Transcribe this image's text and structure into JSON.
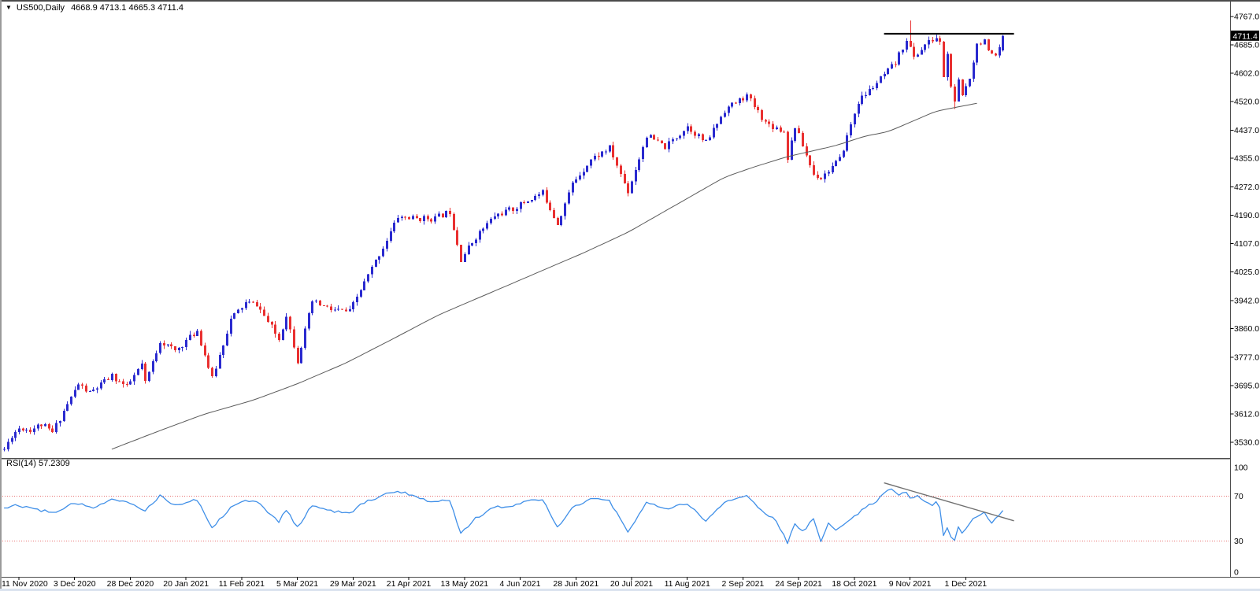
{
  "window": {
    "symbol_period": "US500,Daily",
    "ohlc_text": "4668.9 4713.1 4665.3 4711.4",
    "rsi_label": "RSI(14) 57.2309",
    "current_price": "4711.4"
  },
  "colors": {
    "background": "#ffffff",
    "bull": "#2a2acf",
    "bear": "#e93030",
    "ma_line": "#5a5a5a",
    "resistance": "#000000",
    "rsi_line": "#3f8fe8",
    "rsi_levels": "#e87070",
    "rsi_trendline": "#707070",
    "axis_text": "#000000",
    "frame": "#4d4d4d",
    "price_marker_bg": "#000000",
    "price_marker_text": "#ffffff"
  },
  "chart_data": {
    "type": "candlestick",
    "symbol": "US500",
    "timeframe": "Daily",
    "title_ohlc": {
      "open": 4668.9,
      "high": 4713.1,
      "low": 4665.3,
      "close": 4711.4
    },
    "price_axis_ticks": [
      "4767.0",
      "4685.0",
      "4602.0",
      "4520.0",
      "4437.0",
      "4355.0",
      "4272.0",
      "4190.0",
      "4107.0",
      "4025.0",
      "3942.0",
      "3860.0",
      "3777.0",
      "3695.0",
      "3612.0",
      "3530.0"
    ],
    "date_ticks": [
      "11 Nov 2020",
      "3 Dec 2020",
      "28 Dec 2020",
      "20 Jan 2021",
      "11 Feb 2021",
      "5 Mar 2021",
      "29 Mar 2021",
      "21 Apr 2021",
      "13 May 2021",
      "4 Jun 2021",
      "28 Jun 2021",
      "20 Jul 2021",
      "11 Aug 2021",
      "2 Sep 2021",
      "24 Sep 2021",
      "18 Oct 2021",
      "9 Nov 2021",
      "1 Dec 2021"
    ],
    "bars_per_tick": 15,
    "first_bar": -4,
    "last_bar": 265,
    "ylim": [
      3490,
      4790
    ],
    "grid": false,
    "close_path_anchors": [
      [
        -4,
        3510
      ],
      [
        -2,
        3550
      ],
      [
        0,
        3572
      ],
      [
        3,
        3567
      ],
      [
        6,
        3582
      ],
      [
        9,
        3558
      ],
      [
        12,
        3622
      ],
      [
        16,
        3699
      ],
      [
        19,
        3673
      ],
      [
        25,
        3722
      ],
      [
        29,
        3690
      ],
      [
        33,
        3756
      ],
      [
        34,
        3701
      ],
      [
        38,
        3825
      ],
      [
        42,
        3795
      ],
      [
        48,
        3855
      ],
      [
        52,
        3714
      ],
      [
        57,
        3887
      ],
      [
        61,
        3935
      ],
      [
        64,
        3931
      ],
      [
        70,
        3829
      ],
      [
        72,
        3902
      ],
      [
        75,
        3768
      ],
      [
        79,
        3939
      ],
      [
        84,
        3915
      ],
      [
        89,
        3909
      ],
      [
        92,
        3973
      ],
      [
        98,
        4097
      ],
      [
        102,
        4185
      ],
      [
        107,
        4180
      ],
      [
        112,
        4181
      ],
      [
        116,
        4201
      ],
      [
        119,
        4063
      ],
      [
        123,
        4127
      ],
      [
        128,
        4188
      ],
      [
        133,
        4208
      ],
      [
        136,
        4227
      ],
      [
        141,
        4255
      ],
      [
        145,
        4166
      ],
      [
        149,
        4281
      ],
      [
        154,
        4352
      ],
      [
        159,
        4385
      ],
      [
        164,
        4258
      ],
      [
        169,
        4422
      ],
      [
        174,
        4387
      ],
      [
        180,
        4448
      ],
      [
        185,
        4400
      ],
      [
        190,
        4496
      ],
      [
        194,
        4524
      ],
      [
        196,
        4537
      ],
      [
        201,
        4459
      ],
      [
        206,
        4433
      ],
      [
        207,
        4358
      ],
      [
        209,
        4449
      ],
      [
        214,
        4308
      ],
      [
        216,
        4300
      ],
      [
        221,
        4351
      ],
      [
        226,
        4520
      ],
      [
        231,
        4574
      ],
      [
        236,
        4631
      ],
      [
        239,
        4702
      ],
      [
        241,
        4647
      ],
      [
        244,
        4685
      ],
      [
        247,
        4705
      ],
      [
        248,
        4690
      ],
      [
        249,
        4595
      ],
      [
        250,
        4655
      ],
      [
        251,
        4567
      ],
      [
        252,
        4513
      ],
      [
        253,
        4577
      ],
      [
        254,
        4538
      ],
      [
        256,
        4592
      ],
      [
        258,
        4687
      ],
      [
        260,
        4701
      ],
      [
        261,
        4660
      ],
      [
        263,
        4645
      ],
      [
        264,
        4672
      ],
      [
        265,
        4711.4
      ]
    ],
    "rsi_period": 14,
    "rsi_current": 57.2309,
    "rsi_axis_ticks": [
      "100",
      "70",
      "30",
      "0"
    ],
    "rsi_overbought": 70,
    "rsi_oversold": 30,
    "rsi_path_anchors": [
      [
        -4,
        60
      ],
      [
        0,
        62
      ],
      [
        5,
        58
      ],
      [
        10,
        55
      ],
      [
        15,
        64
      ],
      [
        20,
        60
      ],
      [
        25,
        68
      ],
      [
        30,
        64
      ],
      [
        34,
        57
      ],
      [
        38,
        71
      ],
      [
        42,
        62
      ],
      [
        48,
        67
      ],
      [
        52,
        42
      ],
      [
        57,
        60
      ],
      [
        61,
        67
      ],
      [
        64,
        65
      ],
      [
        70,
        47
      ],
      [
        72,
        58
      ],
      [
        75,
        42
      ],
      [
        79,
        62
      ],
      [
        84,
        57
      ],
      [
        89,
        54
      ],
      [
        92,
        63
      ],
      [
        98,
        71
      ],
      [
        102,
        75
      ],
      [
        107,
        70
      ],
      [
        110,
        66
      ],
      [
        112,
        65
      ],
      [
        116,
        67
      ],
      [
        119,
        37
      ],
      [
        123,
        50
      ],
      [
        128,
        60
      ],
      [
        133,
        62
      ],
      [
        136,
        65
      ],
      [
        141,
        68
      ],
      [
        145,
        42
      ],
      [
        149,
        60
      ],
      [
        154,
        68
      ],
      [
        159,
        66
      ],
      [
        164,
        38
      ],
      [
        169,
        65
      ],
      [
        174,
        58
      ],
      [
        180,
        64
      ],
      [
        185,
        48
      ],
      [
        190,
        64
      ],
      [
        194,
        69
      ],
      [
        196,
        70
      ],
      [
        201,
        55
      ],
      [
        204,
        48
      ],
      [
        207,
        28
      ],
      [
        209,
        45
      ],
      [
        211,
        38
      ],
      [
        214,
        50
      ],
      [
        216,
        30
      ],
      [
        218,
        45
      ],
      [
        220,
        40
      ],
      [
        223,
        48
      ],
      [
        226,
        55
      ],
      [
        229,
        62
      ],
      [
        231,
        65
      ],
      [
        233,
        74
      ],
      [
        235,
        76
      ],
      [
        237,
        72
      ],
      [
        239,
        73
      ],
      [
        240,
        68
      ],
      [
        242,
        70
      ],
      [
        244,
        65
      ],
      [
        246,
        62
      ],
      [
        247,
        65
      ],
      [
        248,
        60
      ],
      [
        249,
        35
      ],
      [
        250,
        42
      ],
      [
        251,
        34
      ],
      [
        252,
        30
      ],
      [
        253,
        43
      ],
      [
        254,
        36
      ],
      [
        255,
        40
      ],
      [
        256,
        46
      ],
      [
        258,
        52
      ],
      [
        260,
        55
      ],
      [
        261,
        50
      ],
      [
        262,
        45
      ],
      [
        263,
        49
      ],
      [
        264,
        53
      ],
      [
        265,
        57.23
      ]
    ],
    "ma_line_anchors": [
      [
        25,
        3510
      ],
      [
        37,
        3560
      ],
      [
        50,
        3612
      ],
      [
        63,
        3652
      ],
      [
        75,
        3700
      ],
      [
        88,
        3760
      ],
      [
        101,
        3832
      ],
      [
        113,
        3900
      ],
      [
        126,
        3960
      ],
      [
        139,
        4020
      ],
      [
        152,
        4080
      ],
      [
        164,
        4140
      ],
      [
        177,
        4220
      ],
      [
        190,
        4300
      ],
      [
        198,
        4330
      ],
      [
        207,
        4360
      ],
      [
        220,
        4392
      ],
      [
        228,
        4420
      ],
      [
        234,
        4432
      ],
      [
        247,
        4492
      ],
      [
        258,
        4515
      ]
    ],
    "objects": {
      "resistance_line": {
        "price": 4717,
        "from_bar": 233,
        "to_bar": 268
      },
      "rsi_trendline": {
        "from_bar": 233,
        "from_value": 82,
        "to_bar": 268,
        "to_value": 48
      }
    },
    "bar_overrides": [
      {
        "bar": 240,
        "high": 4756
      },
      {
        "bar": 252,
        "low": 4498
      }
    ],
    "last_bar_ohlc": {
      "open": 4668.9,
      "high": 4713.1,
      "low": 4665.3,
      "close": 4711.4
    },
    "noise": {
      "seed": 11,
      "close_amp": 9,
      "wick_amp": 11
    }
  }
}
